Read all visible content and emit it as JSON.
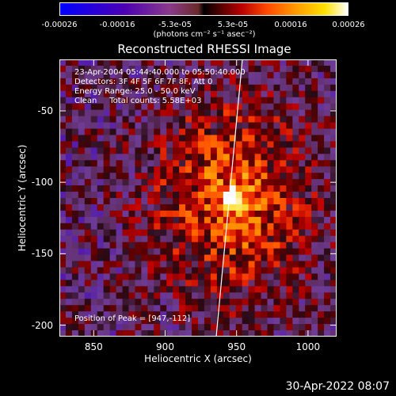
{
  "colorbar": {
    "ticks": [
      "-0.00026",
      "-0.00016",
      "-5.3e-05",
      "5.3e-05",
      "0.00016",
      "0.00026"
    ],
    "unit": "(photons cm⁻² s⁻¹ asec⁻²)"
  },
  "chart_data": {
    "type": "heatmap",
    "title": "Reconstructed RHESSI Image",
    "xlabel": "Heliocentric X (arcsec)",
    "ylabel": "Heliocentric Y (arcsec)",
    "xlim": [
      826,
      1020
    ],
    "ylim": [
      -208,
      -14
    ],
    "x_ticks": [
      850,
      900,
      950,
      1000
    ],
    "y_ticks": [
      -50,
      -100,
      -150,
      -200
    ],
    "peak": [
      947,
      -112
    ],
    "annotations": [
      "23-Apr-2004 05:44:40.000 to 05:50:40.000",
      "Detectors: 3F 4F 5F 6F 7F 8F, Att 0",
      "Energy Range: 25.0 - 50.0 keV",
      "Clean     Total counts: 5.58E+03"
    ],
    "peak_label": "Position of Peak = [947,-112]"
  },
  "footer": {
    "date": "30-Apr-2022 08:07"
  }
}
